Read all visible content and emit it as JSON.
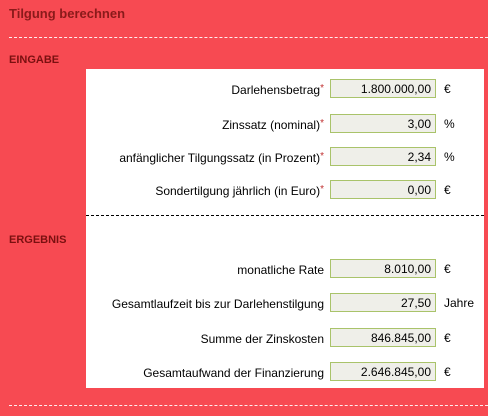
{
  "title": "Tilgung berechnen",
  "eingabe": {
    "heading": "EINGABE",
    "rows": [
      {
        "label": "Darlehensbetrag",
        "required": "*",
        "value": "1.800.000,00",
        "unit": "€"
      },
      {
        "label": "Zinssatz (nominal)",
        "required": "*",
        "value": "3,00",
        "unit": "%"
      },
      {
        "label": "anfänglicher Tilgungssatz (in Prozent)",
        "required": "*",
        "value": "2,34",
        "unit": "%"
      },
      {
        "label": "Sondertilgung jährlich (in Euro)",
        "required": "*",
        "value": "0,00",
        "unit": "€"
      }
    ]
  },
  "ergebnis": {
    "heading": "ERGEBNIS",
    "rows": [
      {
        "label": "monatliche Rate",
        "value": "8.010,00",
        "unit": "€"
      },
      {
        "label": "Gesamtlaufzeit bis zur Darlehenstilgung",
        "value": "27,50",
        "unit": "Jahre"
      },
      {
        "label": "Summe der Zinskosten",
        "value": "846.845,00",
        "unit": "€"
      },
      {
        "label": "Gesamtaufwand der Finanzierung",
        "value": "2.646.845,00",
        "unit": "€"
      }
    ]
  }
}
